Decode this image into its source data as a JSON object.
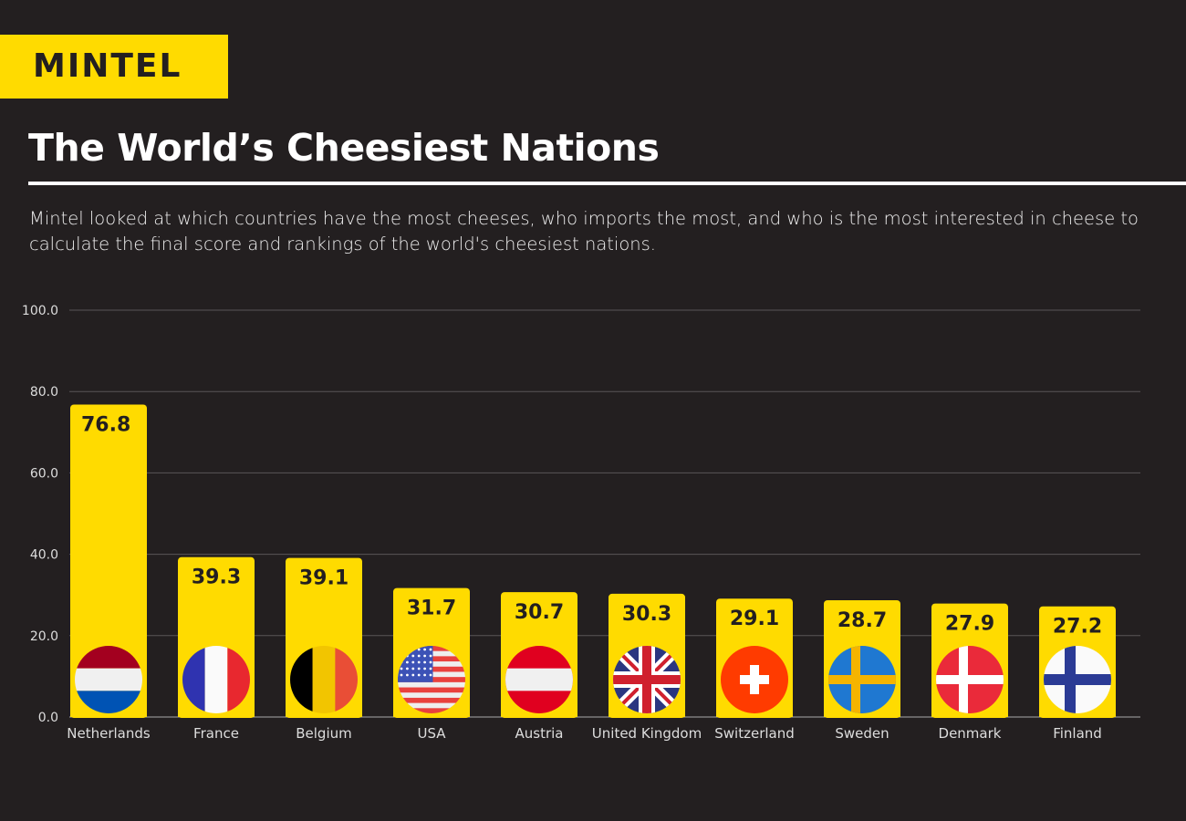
{
  "logo": "MINTEL",
  "chart_data": {
    "type": "bar",
    "title": "The World’s Cheesiest Nations",
    "subtitle": "Mintel looked at which countries have the most cheeses, who imports the most, and who is the most interested in cheese to calculate the final score and rankings of the world's cheesiest nations.",
    "categories": [
      "Netherlands",
      "France",
      "Belgium",
      "USA",
      "Austria",
      "United Kingdom",
      "Switzerland",
      "Sweden",
      "Denmark",
      "Finland"
    ],
    "values": [
      76.8,
      39.3,
      39.1,
      31.7,
      30.7,
      30.3,
      29.1,
      28.7,
      27.9,
      27.2
    ],
    "data_labels": [
      "76.8",
      "39.3",
      "39.1",
      "31.7",
      "30.7",
      "30.3",
      "29.1",
      "28.7",
      "27.9",
      "27.2"
    ],
    "flags": [
      "netherlands-flag",
      "france-flag",
      "belgium-flag",
      "usa-flag",
      "austria-flag",
      "uk-flag",
      "switzerland-flag",
      "sweden-flag",
      "denmark-flag",
      "finland-flag"
    ],
    "ylim": [
      0,
      100
    ],
    "yticks": [
      "0.0",
      "20.0",
      "40.0",
      "60.0",
      "80.0",
      "100.0"
    ],
    "grid": true,
    "xlabel": "",
    "ylabel": "",
    "colors": {
      "bar": "#ffdb00",
      "background": "#231f20",
      "grid": "#5a5657"
    }
  }
}
